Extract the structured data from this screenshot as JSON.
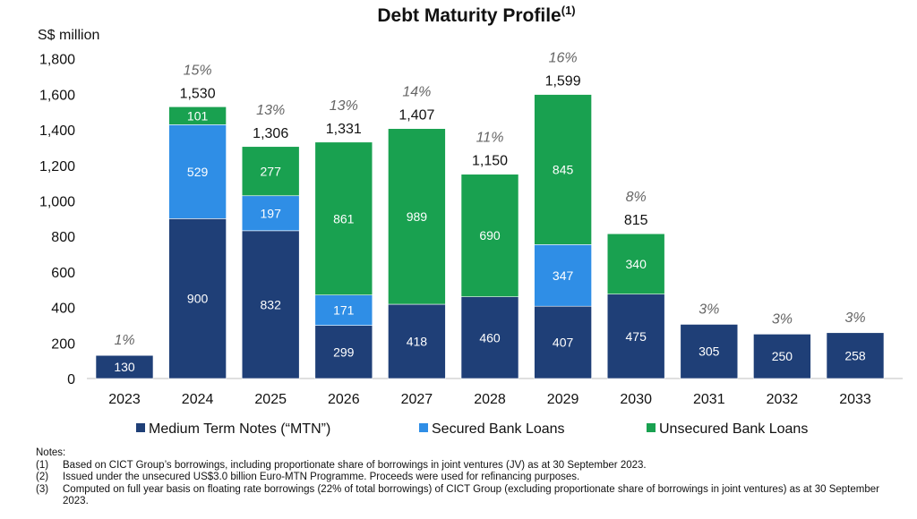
{
  "chart_data": {
    "type": "bar",
    "stacked": true,
    "title": "Debt Maturity Profile",
    "title_superscript": "(1)",
    "ylabel": "S$ million",
    "ylim": [
      0,
      1800
    ],
    "yticks": [
      "0",
      "200",
      "400",
      "600",
      "800",
      "1,000",
      "1,200",
      "1,400",
      "1,600",
      "1,800"
    ],
    "categories": [
      "2023",
      "2024",
      "2025",
      "2026",
      "2027",
      "2028",
      "2029",
      "2030",
      "2031",
      "2032",
      "2033"
    ],
    "series": [
      {
        "name": "Medium Term Notes (“MTN”)",
        "color": "#1f3f77",
        "values": [
          130,
          900,
          832,
          299,
          418,
          460,
          407,
          475,
          305,
          250,
          258
        ]
      },
      {
        "name": "Secured Bank Loans",
        "color": "#2f8ee6",
        "values": [
          0,
          529,
          197,
          171,
          0,
          0,
          347,
          0,
          0,
          0,
          0
        ]
      },
      {
        "name": "Unsecured Bank Loans",
        "color": "#19a150",
        "values": [
          0,
          101,
          277,
          861,
          989,
          690,
          845,
          340,
          0,
          0,
          0
        ]
      }
    ],
    "segment_labels": [
      [
        "130",
        "",
        ""
      ],
      [
        "900",
        "529",
        "101"
      ],
      [
        "832",
        "197",
        "277"
      ],
      [
        "299",
        "171",
        "861"
      ],
      [
        "418",
        "",
        "989"
      ],
      [
        "460",
        "",
        "690"
      ],
      [
        "407",
        "347",
        "845"
      ],
      [
        "475",
        "",
        "340"
      ],
      [
        "305",
        "",
        ""
      ],
      [
        "250",
        "",
        ""
      ],
      [
        "258",
        "",
        ""
      ]
    ],
    "totals": [
      "",
      "1,530",
      "1,306",
      "1,331",
      "1,407",
      "1,150",
      "1,599",
      "815",
      "",
      "",
      ""
    ],
    "percentages": [
      "1%",
      "15%",
      "13%",
      "13%",
      "14%",
      "11%",
      "16%",
      "8%",
      "3%",
      "3%",
      "3%"
    ],
    "legend_position": "bottom",
    "grid": false
  },
  "notes": {
    "heading": "Notes:",
    "items": [
      {
        "num": "(1)",
        "text": "Based on CICT Group’s borrowings, including proportionate share of borrowings in joint ventures (JV) as at 30 September 2023."
      },
      {
        "num": "(2)",
        "text": "Issued under the unsecured US$3.0 billion Euro-MTN Programme. Proceeds were used for refinancing purposes."
      },
      {
        "num": "(3)",
        "text": "Computed on full year basis on floating rate borrowings (22% of total borrowings) of CICT Group (excluding proportionate share of borrowings in joint ventures) as at 30 September 2023."
      }
    ]
  }
}
